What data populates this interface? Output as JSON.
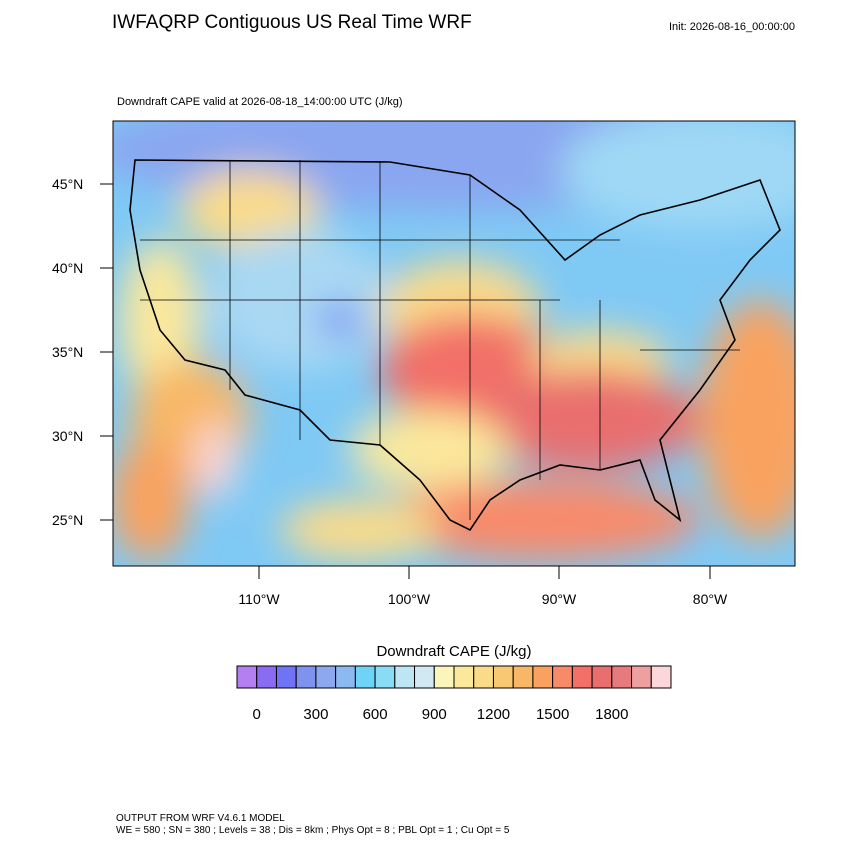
{
  "header": {
    "title": "IWFAQRP Contiguous US Real Time WRF",
    "init": "Init: 2026-08-16_00:00:00"
  },
  "map": {
    "subtitle": "Downdraft CAPE valid at 2026-08-18_14:00:00 UTC   (J/kg)",
    "lat_labels": [
      "45°N",
      "40°N",
      "35°N",
      "30°N",
      "25°N"
    ],
    "lon_labels": [
      "110°W",
      "100°W",
      "90°W",
      "80°W"
    ]
  },
  "colorbar": {
    "title": "Downdraft CAPE  (J/kg)",
    "colors": [
      "#b47ff0",
      "#8a6cf2",
      "#6f73f5",
      "#7f93ee",
      "#8da8ee",
      "#8cb9f2",
      "#6fd3f7",
      "#88dcf5",
      "#bde5f3",
      "#d2e9f3",
      "#fbf5bc",
      "#fbe89c",
      "#fadb8a",
      "#f9c873",
      "#f8b766",
      "#f9a25f",
      "#f88a6a",
      "#f27068",
      "#e96e6e",
      "#e77a7c",
      "#ee9f9f",
      "#fcd6d8"
    ],
    "labels": [
      0,
      300,
      600,
      900,
      1200,
      1500,
      1800
    ]
  },
  "footer": {
    "line1": "OUTPUT FROM WRF V4.6.1 MODEL",
    "line2": "WE = 580 ; SN = 380 ; Levels = 38 ; Dis = 8km ; Phys Opt = 8 ; PBL Opt = 1 ; Cu Opt = 5"
  }
}
